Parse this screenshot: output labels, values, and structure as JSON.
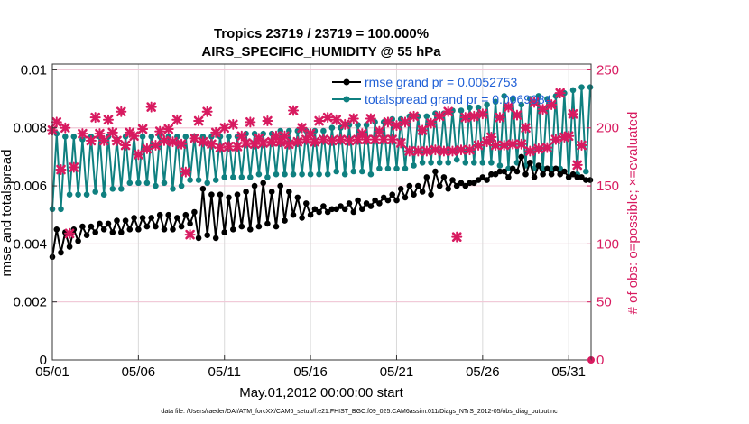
{
  "chart_data": {
    "type": "line",
    "title": "Tropics 23719 / 23719 = 100.000%",
    "subtitle": "AIRS_SPECIFIC_HUMIDITY @ 55 hPa",
    "xlabel": "May.01,2012 00:00:00 start",
    "ylabel_left": "rmse and totalspread",
    "ylabel_right": "# of obs: o=possible; ×=evaluated",
    "footnote": "data file: /Users/raeder/DAI/ATM_forcXX/CAM6_setup/f.e21.FHIST_BGC.f09_025.CAM6assim.011/Diags_NTrS_2012-05/obs_diag_output.nc",
    "xlim": [
      1,
      32.3
    ],
    "ylim_left": [
      0,
      0.0102
    ],
    "ylim_right": [
      0,
      255
    ],
    "x_ticks": [
      1,
      6,
      11,
      16,
      21,
      26,
      31
    ],
    "x_tick_labels": [
      "05/01",
      "05/06",
      "05/11",
      "05/16",
      "05/21",
      "05/26",
      "05/31"
    ],
    "y_left_ticks": [
      0,
      0.002,
      0.004,
      0.006,
      0.008,
      0.01
    ],
    "y_left_tick_labels": [
      "0",
      "0.002",
      "0.004",
      "0.006",
      "0.008",
      "0.01"
    ],
    "y_right_ticks": [
      0,
      50,
      100,
      150,
      200,
      250
    ],
    "y_right_tick_labels": [
      "0",
      "50",
      "100",
      "150",
      "200",
      "250"
    ],
    "grid": true,
    "legend_position": "top-right",
    "colors": {
      "rmse": "#000000",
      "spread": "#0f8080",
      "obs": "#d81b60",
      "axis": "#333333",
      "grid": "#d9d9d9",
      "legend_text": "#1f5fd6"
    },
    "series": [
      {
        "name": "rmse grand pr = 0.0052753",
        "axis": "left",
        "color": "#000000",
        "x_start": 1.0,
        "x_step": 0.25,
        "values": [
          0.00355,
          0.0045,
          0.0037,
          0.0044,
          0.0039,
          0.0045,
          0.0041,
          0.0046,
          0.0043,
          0.0046,
          0.0044,
          0.0047,
          0.0045,
          0.0047,
          0.0044,
          0.0048,
          0.0044,
          0.0048,
          0.0045,
          0.0049,
          0.0045,
          0.0049,
          0.0046,
          0.0049,
          0.0046,
          0.005,
          0.0045,
          0.005,
          0.0045,
          0.0049,
          0.0046,
          0.005,
          0.0047,
          0.0051,
          0.0042,
          0.0059,
          0.0043,
          0.0057,
          0.0042,
          0.0057,
          0.0044,
          0.0056,
          0.0045,
          0.0057,
          0.0046,
          0.0058,
          0.0045,
          0.006,
          0.0046,
          0.0061,
          0.0047,
          0.0058,
          0.0046,
          0.006,
          0.0048,
          0.0058,
          0.005,
          0.0056,
          0.0049,
          0.0054,
          0.005,
          0.0052,
          0.0051,
          0.0053,
          0.0051,
          0.0052,
          0.0052,
          0.0053,
          0.0052,
          0.0054,
          0.0051,
          0.0055,
          0.0052,
          0.0054,
          0.0053,
          0.0055,
          0.0054,
          0.0056,
          0.0055,
          0.0057,
          0.0055,
          0.0059,
          0.0056,
          0.006,
          0.0057,
          0.006,
          0.0058,
          0.0063,
          0.0057,
          0.0065,
          0.006,
          0.0063,
          0.0059,
          0.0062,
          0.006,
          0.0061,
          0.006,
          0.0061,
          0.0061,
          0.0062,
          0.0063,
          0.0062,
          0.0064,
          0.0064,
          0.0065,
          0.0065,
          0.0063,
          0.0066,
          0.0065,
          0.007,
          0.0064,
          0.0068,
          0.0063,
          0.0067,
          0.0064,
          0.0066,
          0.0064,
          0.0066,
          0.0064,
          0.0065,
          0.0063,
          0.0064,
          0.0063,
          0.0063,
          0.0062,
          0.0062
        ]
      },
      {
        "name": "totalspread grand pr = 0.0069984",
        "axis": "left",
        "color": "#0f8080",
        "x_start": 1.0,
        "x_step": 0.25,
        "values": [
          0.0052,
          0.0078,
          0.0052,
          0.0077,
          0.0057,
          0.0077,
          0.0057,
          0.0076,
          0.0057,
          0.0077,
          0.0058,
          0.0077,
          0.0057,
          0.0077,
          0.0059,
          0.0076,
          0.0059,
          0.0077,
          0.0061,
          0.0077,
          0.0061,
          0.0077,
          0.0061,
          0.0077,
          0.006,
          0.0077,
          0.0061,
          0.0077,
          0.0059,
          0.0077,
          0.006,
          0.0077,
          0.0062,
          0.0077,
          0.0062,
          0.0077,
          0.0061,
          0.0077,
          0.0062,
          0.0077,
          0.0063,
          0.0077,
          0.0063,
          0.0077,
          0.0063,
          0.0078,
          0.0063,
          0.0078,
          0.0064,
          0.0078,
          0.0063,
          0.0078,
          0.0064,
          0.0079,
          0.0064,
          0.0079,
          0.0064,
          0.0079,
          0.0064,
          0.0079,
          0.0064,
          0.0079,
          0.0064,
          0.0079,
          0.0064,
          0.008,
          0.0065,
          0.008,
          0.0064,
          0.0081,
          0.0065,
          0.0081,
          0.0065,
          0.0081,
          0.0064,
          0.0082,
          0.0066,
          0.0082,
          0.0066,
          0.0083,
          0.0066,
          0.0083,
          0.0066,
          0.0084,
          0.0067,
          0.0084,
          0.0068,
          0.0084,
          0.0068,
          0.0085,
          0.0068,
          0.0085,
          0.0068,
          0.0086,
          0.0069,
          0.0086,
          0.0068,
          0.0087,
          0.0068,
          0.0087,
          0.0068,
          0.0088,
          0.0068,
          0.0089,
          0.0067,
          0.0091,
          0.0066,
          0.009,
          0.0068,
          0.0088,
          0.0067,
          0.009,
          0.0066,
          0.0091,
          0.0066,
          0.009,
          0.0066,
          0.0091,
          0.0066,
          0.0092,
          0.0063,
          0.0093,
          0.0064,
          0.0094,
          0.0065,
          0.0094
        ]
      },
      {
        "name": "obs evaluated",
        "axis": "right",
        "color": "#d81b60",
        "marker": "x",
        "points": [
          [
            1.0,
            198
          ],
          [
            1.25,
            205
          ],
          [
            1.5,
            164
          ],
          [
            1.75,
            200
          ],
          [
            2.0,
            109
          ],
          [
            2.25,
            166
          ],
          [
            2.75,
            195
          ],
          [
            3.25,
            189
          ],
          [
            3.5,
            209
          ],
          [
            3.75,
            195
          ],
          [
            4.0,
            189
          ],
          [
            4.25,
            207
          ],
          [
            4.5,
            196
          ],
          [
            4.75,
            189
          ],
          [
            5.0,
            214
          ],
          [
            5.25,
            185
          ],
          [
            5.5,
            196
          ],
          [
            5.75,
            193
          ],
          [
            6.0,
            177
          ],
          [
            6.25,
            199
          ],
          [
            6.5,
            182
          ],
          [
            6.75,
            218
          ],
          [
            7.0,
            185
          ],
          [
            7.25,
            197
          ],
          [
            7.5,
            189
          ],
          [
            7.75,
            199
          ],
          [
            8.0,
            188
          ],
          [
            8.25,
            207
          ],
          [
            8.5,
            186
          ],
          [
            8.75,
            162
          ],
          [
            9.0,
            108
          ],
          [
            9.25,
            191
          ],
          [
            9.5,
            206
          ],
          [
            9.75,
            188
          ],
          [
            10.0,
            214
          ],
          [
            10.25,
            186
          ],
          [
            10.5,
            196
          ],
          [
            10.75,
            183
          ],
          [
            11.0,
            200
          ],
          [
            11.25,
            184
          ],
          [
            11.5,
            203
          ],
          [
            11.75,
            184
          ],
          [
            12.0,
            193
          ],
          [
            12.25,
            187
          ],
          [
            12.5,
            205
          ],
          [
            12.75,
            186
          ],
          [
            13.0,
            191
          ],
          [
            13.25,
            187
          ],
          [
            13.5,
            206
          ],
          [
            13.75,
            188
          ],
          [
            14.0,
            193
          ],
          [
            14.25,
            188
          ],
          [
            14.5,
            193
          ],
          [
            14.75,
            186
          ],
          [
            15.0,
            215
          ],
          [
            15.25,
            188
          ],
          [
            15.5,
            200
          ],
          [
            15.75,
            190
          ],
          [
            16.0,
            195
          ],
          [
            16.25,
            188
          ],
          [
            16.5,
            206
          ],
          [
            16.75,
            190
          ],
          [
            17.0,
            209
          ],
          [
            17.25,
            189
          ],
          [
            17.5,
            207
          ],
          [
            17.75,
            190
          ],
          [
            18.0,
            203
          ],
          [
            18.25,
            189
          ],
          [
            18.5,
            208
          ],
          [
            18.75,
            190
          ],
          [
            19.0,
            195
          ],
          [
            19.25,
            190
          ],
          [
            19.5,
            208
          ],
          [
            19.75,
            190
          ],
          [
            20.0,
            197
          ],
          [
            20.25,
            190
          ],
          [
            20.5,
            205
          ],
          [
            20.75,
            190
          ],
          [
            21.0,
            202
          ],
          [
            21.25,
            187
          ],
          [
            21.5,
            205
          ],
          [
            21.75,
            180
          ],
          [
            22.0,
            210
          ],
          [
            22.25,
            180
          ],
          [
            22.5,
            198
          ],
          [
            22.75,
            180
          ],
          [
            23.0,
            204
          ],
          [
            23.25,
            181
          ],
          [
            23.5,
            210
          ],
          [
            23.75,
            180
          ],
          [
            24.0,
            214
          ],
          [
            24.25,
            180
          ],
          [
            24.5,
            106
          ],
          [
            24.75,
            181
          ],
          [
            25.0,
            209
          ],
          [
            25.25,
            181
          ],
          [
            25.5,
            210
          ],
          [
            25.75,
            185
          ],
          [
            26.0,
            212
          ],
          [
            26.25,
            188
          ],
          [
            26.5,
            192
          ],
          [
            26.75,
            185
          ],
          [
            27.0,
            209
          ],
          [
            27.25,
            185
          ],
          [
            27.5,
            218
          ],
          [
            27.75,
            186
          ],
          [
            28.0,
            211
          ],
          [
            28.25,
            186
          ],
          [
            28.5,
            200
          ],
          [
            28.75,
            180
          ],
          [
            29.0,
            222
          ],
          [
            29.25,
            182
          ],
          [
            29.5,
            216
          ],
          [
            29.75,
            183
          ],
          [
            30.0,
            220
          ],
          [
            30.25,
            190
          ],
          [
            30.5,
            230
          ],
          [
            30.75,
            192
          ],
          [
            31.0,
            193
          ],
          [
            31.25,
            212
          ],
          [
            31.5,
            168
          ],
          [
            31.75,
            185
          ]
        ]
      },
      {
        "name": "obs possible",
        "axis": "right",
        "color": "#d81b60",
        "marker": "o",
        "points": [
          [
            32.3,
            0
          ]
        ]
      }
    ]
  }
}
